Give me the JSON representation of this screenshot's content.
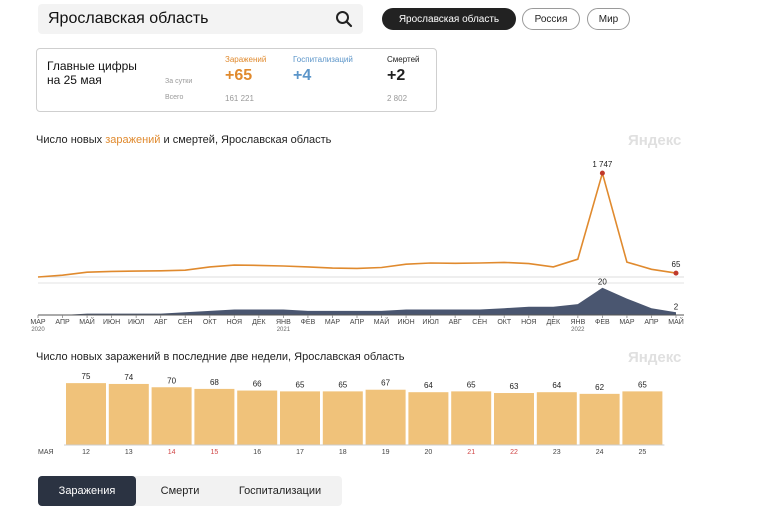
{
  "search": {
    "value": "Ярославская область"
  },
  "region_buttons": [
    {
      "label": "Ярославская область",
      "active": true
    },
    {
      "label": "Россия",
      "active": false
    },
    {
      "label": "Мир",
      "active": false
    }
  ],
  "summary": {
    "title_line1": "Главные цифры",
    "title_line2": "на 25 мая",
    "row_daily": "За сутки",
    "row_total": "Всего",
    "columns": [
      {
        "label": "Заражений",
        "daily": "+65",
        "total": "161 221",
        "color": "#e08a2e"
      },
      {
        "label": "Госпитализаций",
        "daily": "+4",
        "total": "",
        "color": "#5b95c9"
      },
      {
        "label": "Смертей",
        "daily": "+2",
        "total": "2 802",
        "color": "#222222"
      }
    ]
  },
  "chart1": {
    "title_pre": "Число новых ",
    "title_hl": "заражений",
    "title_post": " и смертей, Ярославская область",
    "watermark": "Яндекс"
  },
  "chart2": {
    "title": "Число новых заражений в последние две недели, Ярославская область",
    "watermark": "Яндекс"
  },
  "chart_data": [
    {
      "type": "line",
      "series": [
        {
          "name": "Заражений",
          "x": [
            "2020-03",
            "2020-04",
            "2020-05",
            "2020-06",
            "2020-07",
            "2020-08",
            "2020-09",
            "2020-10",
            "2020-11",
            "2020-12",
            "2021-01",
            "2021-02",
            "2021-03",
            "2021-04",
            "2021-05",
            "2021-06",
            "2021-07",
            "2021-08",
            "2021-09",
            "2021-10",
            "2021-11",
            "2021-12",
            "2022-01",
            "2022-02",
            "2022-03",
            "2022-04",
            "2022-05"
          ],
          "values": [
            0,
            30,
            80,
            95,
            100,
            105,
            115,
            170,
            200,
            195,
            185,
            170,
            150,
            145,
            160,
            215,
            235,
            230,
            235,
            245,
            225,
            170,
            300,
            1747,
            250,
            130,
            65
          ],
          "color": "#e08a2e",
          "peak_label": "1 747",
          "last_label": "65"
        },
        {
          "name": "Смертей",
          "x": [
            "2020-03",
            "2020-04",
            "2020-05",
            "2020-06",
            "2020-07",
            "2020-08",
            "2020-09",
            "2020-10",
            "2020-11",
            "2020-12",
            "2021-01",
            "2021-02",
            "2021-03",
            "2021-04",
            "2021-05",
            "2021-06",
            "2021-07",
            "2021-08",
            "2021-09",
            "2021-10",
            "2021-11",
            "2021-12",
            "2022-01",
            "2022-02",
            "2022-03",
            "2022-04",
            "2022-05"
          ],
          "values": [
            0,
            0,
            1,
            1,
            1,
            1,
            2,
            3,
            4,
            4,
            4,
            3,
            3,
            3,
            3,
            4,
            4,
            4,
            4,
            5,
            6,
            6,
            8,
            20,
            12,
            5,
            2
          ],
          "color": "#4a5670",
          "peak_label": "20",
          "last_label": "2"
        }
      ],
      "month_labels": [
        {
          "month": "МАР",
          "year": "2020"
        },
        {
          "month": "АПР"
        },
        {
          "month": "МАЙ"
        },
        {
          "month": "ИЮН"
        },
        {
          "month": "ИЮЛ"
        },
        {
          "month": "АВГ"
        },
        {
          "month": "СЕН"
        },
        {
          "month": "ОКТ"
        },
        {
          "month": "НОЯ"
        },
        {
          "month": "ДЕК"
        },
        {
          "month": "ЯНВ",
          "year": "2021"
        },
        {
          "month": "ФЕВ"
        },
        {
          "month": "МАР"
        },
        {
          "month": "АПР"
        },
        {
          "month": "МАЙ"
        },
        {
          "month": "ИЮН"
        },
        {
          "month": "ИЮЛ"
        },
        {
          "month": "АВГ"
        },
        {
          "month": "СЕН"
        },
        {
          "month": "ОКТ"
        },
        {
          "month": "НОЯ"
        },
        {
          "month": "ДЕК"
        },
        {
          "month": "ЯНВ",
          "year": "2022"
        },
        {
          "month": "ФЕВ"
        },
        {
          "month": "МАР"
        },
        {
          "month": "АПР"
        },
        {
          "month": "МАЙ"
        }
      ],
      "ylim": [
        0,
        1800
      ]
    },
    {
      "type": "bar",
      "month_label": "МАЯ",
      "categories": [
        "12",
        "13",
        "14",
        "15",
        "16",
        "17",
        "18",
        "19",
        "20",
        "21",
        "22",
        "23",
        "24",
        "25"
      ],
      "weekend": [
        false,
        false,
        true,
        true,
        false,
        false,
        false,
        false,
        false,
        true,
        true,
        false,
        false,
        false
      ],
      "values": [
        75,
        74,
        70,
        68,
        66,
        65,
        65,
        67,
        64,
        65,
        63,
        64,
        62,
        65
      ],
      "color": "#f0c27a",
      "ylim": [
        0,
        80
      ]
    }
  ],
  "tabs": [
    {
      "label": "Заражения",
      "active": true
    },
    {
      "label": "Смерти",
      "active": false
    },
    {
      "label": "Госпитализации",
      "active": false
    }
  ]
}
